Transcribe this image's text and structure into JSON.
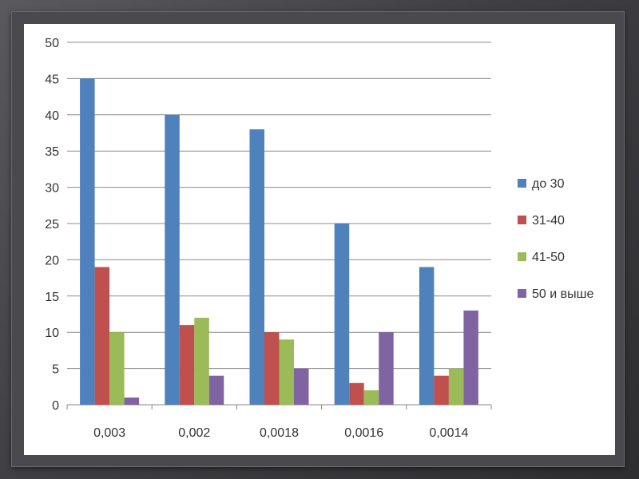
{
  "chart_data": {
    "type": "bar",
    "categories": [
      "0,003",
      "0,002",
      "0,0018",
      "0,0016",
      "0,0014"
    ],
    "series": [
      {
        "name": "до 30",
        "color": "#4F81BD",
        "values": [
          45,
          40,
          38,
          25,
          19
        ]
      },
      {
        "name": "31-40",
        "color": "#C0504D",
        "values": [
          19,
          11,
          10,
          3,
          4
        ]
      },
      {
        "name": "41-50",
        "color": "#9BBB59",
        "values": [
          10,
          12,
          9,
          2,
          5
        ]
      },
      {
        "name": "50 и выше",
        "color": "#8064A2",
        "values": [
          1,
          4,
          5,
          10,
          13
        ]
      }
    ],
    "ylim": [
      0,
      50
    ],
    "yticks": [
      "0",
      "5",
      "10",
      "15",
      "20",
      "25",
      "30",
      "35",
      "40",
      "45",
      "50"
    ],
    "grid": true,
    "legend_position": "right"
  }
}
